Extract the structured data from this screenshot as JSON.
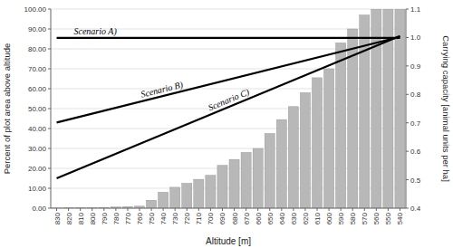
{
  "chart_data": {
    "type": "bar",
    "categories": [
      830,
      820,
      810,
      800,
      790,
      780,
      770,
      760,
      750,
      740,
      730,
      720,
      710,
      700,
      690,
      680,
      670,
      660,
      650,
      640,
      630,
      620,
      610,
      600,
      590,
      580,
      570,
      560,
      550,
      540
    ],
    "values": [
      0.05,
      0.1,
      0.2,
      0.3,
      0.4,
      0.6,
      0.8,
      1.0,
      4.0,
      8.0,
      10.5,
      12.5,
      14.5,
      16.5,
      21.5,
      24.5,
      28.0,
      30.0,
      37.5,
      44.5,
      51.0,
      58.0,
      65.5,
      70.0,
      83.0,
      90.0,
      97.0,
      100.0,
      100.0,
      100.0
    ],
    "color": "#b8b8b8",
    "xlabel": "Altitude [m]",
    "ylabel": "Percent of plot area above altitude",
    "y2label": "Carrying capacity [animal units per ha]",
    "ylim": [
      0,
      100
    ],
    "yticks": [
      {
        "value": 0,
        "label": "0.00"
      },
      {
        "value": 10,
        "label": "10.00"
      },
      {
        "value": 20,
        "label": "20.00"
      },
      {
        "value": 30,
        "label": "30.00"
      },
      {
        "value": 40,
        "label": "40.00"
      },
      {
        "value": 50,
        "label": "50.00"
      },
      {
        "value": 60,
        "label": "60.00"
      },
      {
        "value": 70,
        "label": "70.00"
      },
      {
        "value": 80,
        "label": "80.00"
      },
      {
        "value": 90,
        "label": "90.00"
      },
      {
        "value": 100,
        "label": "100.00"
      }
    ],
    "y2lim": [
      0.4,
      1.1
    ],
    "y2ticks": [
      0.4,
      0.5,
      0.6,
      0.7,
      0.8,
      0.9,
      {
        "value": 1.0,
        "label": "1.0"
      },
      1.1
    ],
    "grid": true,
    "lines": [
      {
        "label": "Scenario A)",
        "color": "#000000",
        "x": [
          830,
          540
        ],
        "values": [
          85.5,
          85.5
        ]
      },
      {
        "label": "Scenario B)",
        "color": "#000000",
        "x": [
          830,
          540
        ],
        "values": [
          43.0,
          86.0
        ]
      },
      {
        "label": "Scenario C)",
        "color": "#000000",
        "x": [
          830,
          540
        ],
        "values": [
          15.0,
          86.5
        ]
      }
    ]
  }
}
